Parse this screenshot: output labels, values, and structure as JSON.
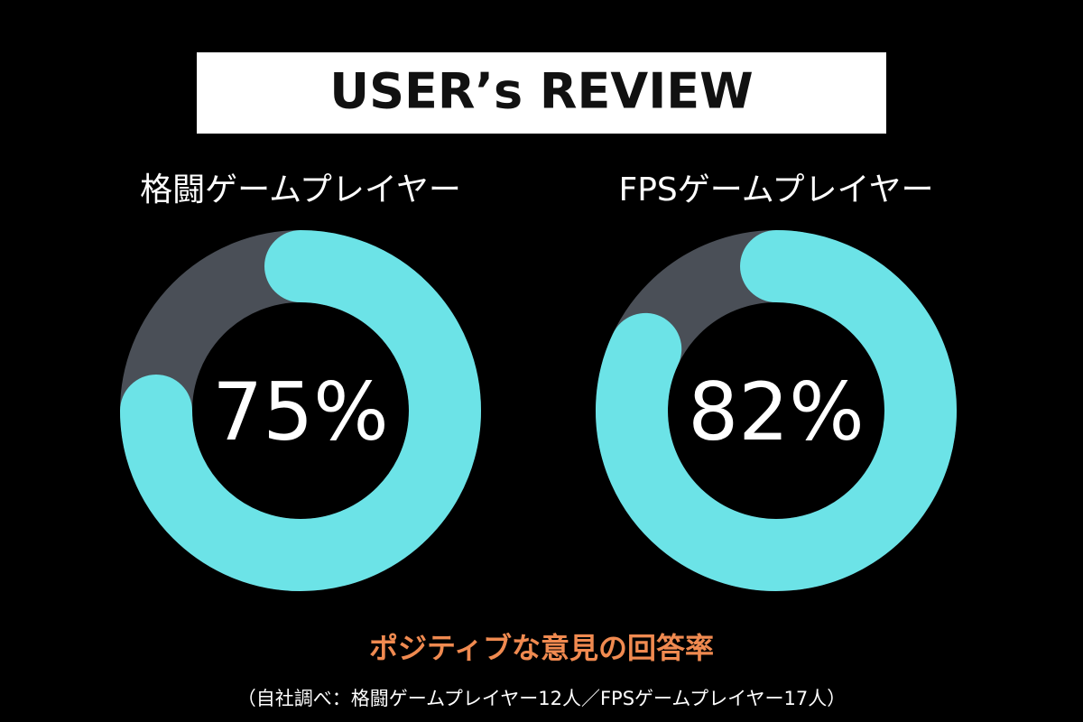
{
  "header": {
    "title": "USER’s REVIEW"
  },
  "chart_data": [
    {
      "type": "donut",
      "title": "格闘ゲームプレイヤー",
      "values": [
        75
      ],
      "value_labels": [
        "75%"
      ],
      "ylim": [
        0,
        100
      ],
      "color": "#6ce3e7",
      "track_color": "#4a4f57"
    },
    {
      "type": "donut",
      "title": "FPSゲームプレイヤー",
      "values": [
        82
      ],
      "value_labels": [
        "82%"
      ],
      "ylim": [
        0,
        100
      ],
      "color": "#6ce3e7",
      "track_color": "#4a4f57"
    }
  ],
  "caption": "ポジティブな意見の回答率",
  "note": "（自社調べ：格闘ゲームプレイヤー12人／FPSゲームプレイヤー17人）"
}
